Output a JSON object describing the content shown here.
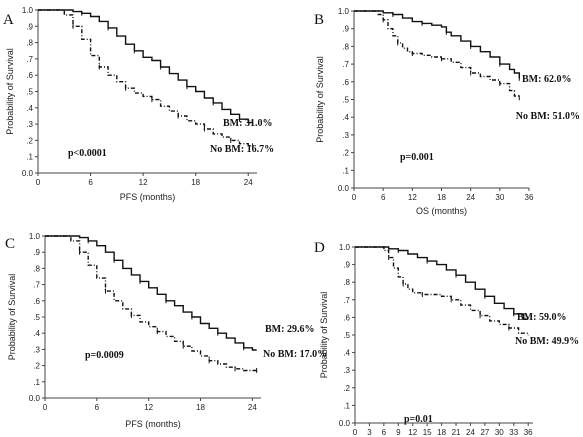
{
  "chart_data": [
    {
      "type": "line",
      "panel_label": "A",
      "xlabel": "PFS (months)",
      "ylabel": "Probability of Survival",
      "xlim": [
        0,
        25
      ],
      "ylim": [
        0,
        1.0
      ],
      "xticks": [
        0,
        6,
        12,
        18,
        24
      ],
      "yticks": [
        "0.0",
        ".1",
        ".2",
        ".3",
        ".4",
        ".5",
        ".6",
        ".7",
        ".8",
        ".9",
        "1.0"
      ],
      "annotations": {
        "pvalue": "p<0.0001",
        "bm": "BM: 31.0%",
        "nobm": "No BM: 16.7%"
      },
      "series": [
        {
          "style": "solid",
          "points": [
            [
              0,
              1.0
            ],
            [
              3,
              1.0
            ],
            [
              4,
              0.99
            ],
            [
              5,
              0.98
            ],
            [
              6,
              0.96
            ],
            [
              7,
              0.93
            ],
            [
              8,
              0.89
            ],
            [
              9,
              0.84
            ],
            [
              10,
              0.79
            ],
            [
              11,
              0.75
            ],
            [
              12,
              0.71
            ],
            [
              13,
              0.69
            ],
            [
              14,
              0.65
            ],
            [
              15,
              0.61
            ],
            [
              16,
              0.57
            ],
            [
              17,
              0.53
            ],
            [
              18,
              0.5
            ],
            [
              19,
              0.46
            ],
            [
              20,
              0.43
            ],
            [
              21,
              0.39
            ],
            [
              22,
              0.36
            ],
            [
              23,
              0.33
            ],
            [
              24,
              0.31
            ],
            [
              24.5,
              0.31
            ]
          ]
        },
        {
          "style": "dashed",
          "points": [
            [
              0,
              1.0
            ],
            [
              2,
              1.0
            ],
            [
              3,
              0.97
            ],
            [
              4,
              0.9
            ],
            [
              5,
              0.82
            ],
            [
              6,
              0.72
            ],
            [
              7,
              0.65
            ],
            [
              8,
              0.6
            ],
            [
              9,
              0.56
            ],
            [
              10,
              0.52
            ],
            [
              11,
              0.49
            ],
            [
              12,
              0.47
            ],
            [
              13,
              0.45
            ],
            [
              14,
              0.41
            ],
            [
              15,
              0.38
            ],
            [
              16,
              0.35
            ],
            [
              17,
              0.32
            ],
            [
              18,
              0.3
            ],
            [
              19,
              0.27
            ],
            [
              20,
              0.24
            ],
            [
              21,
              0.22
            ],
            [
              22,
              0.2
            ],
            [
              23,
              0.18
            ],
            [
              24,
              0.167
            ],
            [
              24.5,
              0.167
            ]
          ]
        }
      ]
    },
    {
      "type": "line",
      "panel_label": "B",
      "xlabel": "OS (months)",
      "ylabel": "Probability of Survival",
      "xlim": [
        0,
        36
      ],
      "ylim": [
        0,
        1.0
      ],
      "xticks": [
        0,
        6,
        12,
        18,
        24,
        30,
        36
      ],
      "yticks": [
        "0.0",
        ".1",
        ".2",
        ".3",
        ".4",
        ".5",
        ".6",
        ".7",
        ".8",
        ".9",
        "1.0"
      ],
      "annotations": {
        "pvalue": "p=0.001",
        "bm": "BM: 62.0%",
        "nobm": "No BM: 51.0%"
      },
      "series": [
        {
          "style": "solid",
          "points": [
            [
              0,
              1.0
            ],
            [
              5,
              1.0
            ],
            [
              6,
              0.99
            ],
            [
              8,
              0.98
            ],
            [
              10,
              0.96
            ],
            [
              12,
              0.94
            ],
            [
              14,
              0.93
            ],
            [
              16,
              0.92
            ],
            [
              18,
              0.91
            ],
            [
              19,
              0.88
            ],
            [
              20,
              0.86
            ],
            [
              22,
              0.83
            ],
            [
              24,
              0.8
            ],
            [
              26,
              0.77
            ],
            [
              28,
              0.74
            ],
            [
              30,
              0.7
            ],
            [
              32,
              0.67
            ],
            [
              33,
              0.65
            ],
            [
              34,
              0.62
            ]
          ]
        },
        {
          "style": "dashed",
          "points": [
            [
              0,
              1.0
            ],
            [
              4,
              1.0
            ],
            [
              5,
              0.98
            ],
            [
              6,
              0.95
            ],
            [
              7,
              0.9
            ],
            [
              8,
              0.86
            ],
            [
              9,
              0.82
            ],
            [
              10,
              0.79
            ],
            [
              11,
              0.77
            ],
            [
              12,
              0.76
            ],
            [
              14,
              0.75
            ],
            [
              16,
              0.74
            ],
            [
              18,
              0.73
            ],
            [
              20,
              0.71
            ],
            [
              22,
              0.68
            ],
            [
              24,
              0.65
            ],
            [
              26,
              0.63
            ],
            [
              28,
              0.61
            ],
            [
              30,
              0.59
            ],
            [
              32,
              0.55
            ],
            [
              33,
              0.52
            ],
            [
              34,
              0.51
            ]
          ]
        }
      ]
    },
    {
      "type": "line",
      "panel_label": "C",
      "xlabel": "PFS (months)",
      "ylabel": "Probability of Survival",
      "xlim": [
        0,
        25
      ],
      "ylim": [
        0,
        1.0
      ],
      "xticks": [
        0,
        6,
        12,
        18,
        24
      ],
      "yticks": [
        "0.0",
        ".1",
        ".2",
        ".3",
        ".4",
        ".5",
        ".6",
        ".7",
        ".8",
        ".9",
        "1.0"
      ],
      "annotations": {
        "pvalue": "p=0.0009",
        "bm": "BM: 29.6%",
        "nobm": "No BM: 17.0%"
      },
      "series": [
        {
          "style": "solid",
          "points": [
            [
              0,
              1.0
            ],
            [
              3,
              1.0
            ],
            [
              4,
              0.99
            ],
            [
              5,
              0.97
            ],
            [
              6,
              0.94
            ],
            [
              7,
              0.9
            ],
            [
              8,
              0.85
            ],
            [
              9,
              0.8
            ],
            [
              10,
              0.76
            ],
            [
              11,
              0.72
            ],
            [
              12,
              0.68
            ],
            [
              13,
              0.64
            ],
            [
              14,
              0.6
            ],
            [
              15,
              0.57
            ],
            [
              16,
              0.53
            ],
            [
              17,
              0.5
            ],
            [
              18,
              0.46
            ],
            [
              19,
              0.43
            ],
            [
              20,
              0.4
            ],
            [
              21,
              0.37
            ],
            [
              22,
              0.34
            ],
            [
              23,
              0.31
            ],
            [
              24,
              0.296
            ],
            [
              24.5,
              0.296
            ]
          ]
        },
        {
          "style": "dashed",
          "points": [
            [
              0,
              1.0
            ],
            [
              2,
              1.0
            ],
            [
              3,
              0.97
            ],
            [
              4,
              0.9
            ],
            [
              5,
              0.82
            ],
            [
              6,
              0.74
            ],
            [
              7,
              0.66
            ],
            [
              8,
              0.6
            ],
            [
              9,
              0.55
            ],
            [
              10,
              0.51
            ],
            [
              11,
              0.47
            ],
            [
              12,
              0.44
            ],
            [
              13,
              0.41
            ],
            [
              14,
              0.38
            ],
            [
              15,
              0.35
            ],
            [
              16,
              0.32
            ],
            [
              17,
              0.29
            ],
            [
              18,
              0.26
            ],
            [
              19,
              0.23
            ],
            [
              20,
              0.21
            ],
            [
              21,
              0.19
            ],
            [
              22,
              0.18
            ],
            [
              23,
              0.17
            ],
            [
              24,
              0.17
            ],
            [
              24.5,
              0.17
            ]
          ]
        }
      ]
    },
    {
      "type": "line",
      "panel_label": "D",
      "xlabel": "OS (months)",
      "ylabel": "Probability of Survival",
      "xlim": [
        0,
        37
      ],
      "ylim": [
        0,
        1.0
      ],
      "xticks": [
        0,
        3,
        6,
        9,
        12,
        15,
        18,
        21,
        24,
        27,
        30,
        33,
        36
      ],
      "yticks": [
        "0.0",
        ".1",
        ".2",
        ".3",
        ".4",
        ".5",
        ".6",
        ".7",
        ".8",
        ".9",
        "1.0"
      ],
      "annotations": {
        "pvalue": "p=0.01",
        "bm": "BM: 59.0%",
        "nobm": "No BM: 49.9%"
      },
      "series": [
        {
          "style": "solid",
          "points": [
            [
              0,
              1.0
            ],
            [
              6,
              1.0
            ],
            [
              7,
              0.99
            ],
            [
              9,
              0.98
            ],
            [
              11,
              0.96
            ],
            [
              13,
              0.94
            ],
            [
              15,
              0.92
            ],
            [
              17,
              0.9
            ],
            [
              19,
              0.87
            ],
            [
              21,
              0.84
            ],
            [
              23,
              0.8
            ],
            [
              25,
              0.76
            ],
            [
              27,
              0.72
            ],
            [
              29,
              0.68
            ],
            [
              31,
              0.65
            ],
            [
              33,
              0.62
            ],
            [
              35,
              0.59
            ],
            [
              36,
              0.59
            ]
          ]
        },
        {
          "style": "dashed",
          "points": [
            [
              0,
              1.0
            ],
            [
              5,
              1.0
            ],
            [
              6,
              0.98
            ],
            [
              7,
              0.94
            ],
            [
              8,
              0.88
            ],
            [
              9,
              0.83
            ],
            [
              10,
              0.79
            ],
            [
              11,
              0.76
            ],
            [
              12,
              0.74
            ],
            [
              14,
              0.73
            ],
            [
              16,
              0.73
            ],
            [
              18,
              0.72
            ],
            [
              20,
              0.7
            ],
            [
              22,
              0.67
            ],
            [
              24,
              0.64
            ],
            [
              26,
              0.61
            ],
            [
              28,
              0.58
            ],
            [
              30,
              0.56
            ],
            [
              32,
              0.54
            ],
            [
              34,
              0.51
            ],
            [
              36,
              0.499
            ]
          ]
        }
      ]
    }
  ]
}
